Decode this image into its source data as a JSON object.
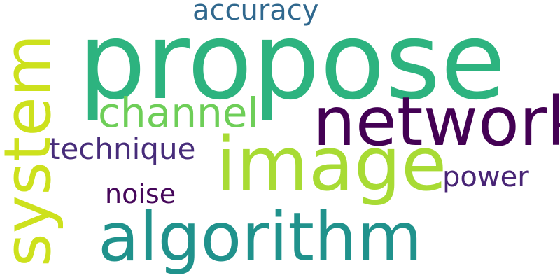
{
  "words": {
    "propose": {
      "text": "propose",
      "color": "#2db37f"
    },
    "network": {
      "text": "network",
      "color": "#440154"
    },
    "image": {
      "text": "image",
      "color": "#a8db34"
    },
    "system": {
      "text": "system",
      "color": "#cde11d"
    },
    "algorithm": {
      "text": "algorithm",
      "color": "#20928c"
    },
    "channel": {
      "text": "channel",
      "color": "#6ece58"
    },
    "technique": {
      "text": "technique",
      "color": "#472c7a"
    },
    "accuracy": {
      "text": "accuracy",
      "color": "#30688e"
    },
    "power": {
      "text": "power",
      "color": "#482475"
    },
    "noise": {
      "text": "noise",
      "color": "#46075a"
    }
  }
}
